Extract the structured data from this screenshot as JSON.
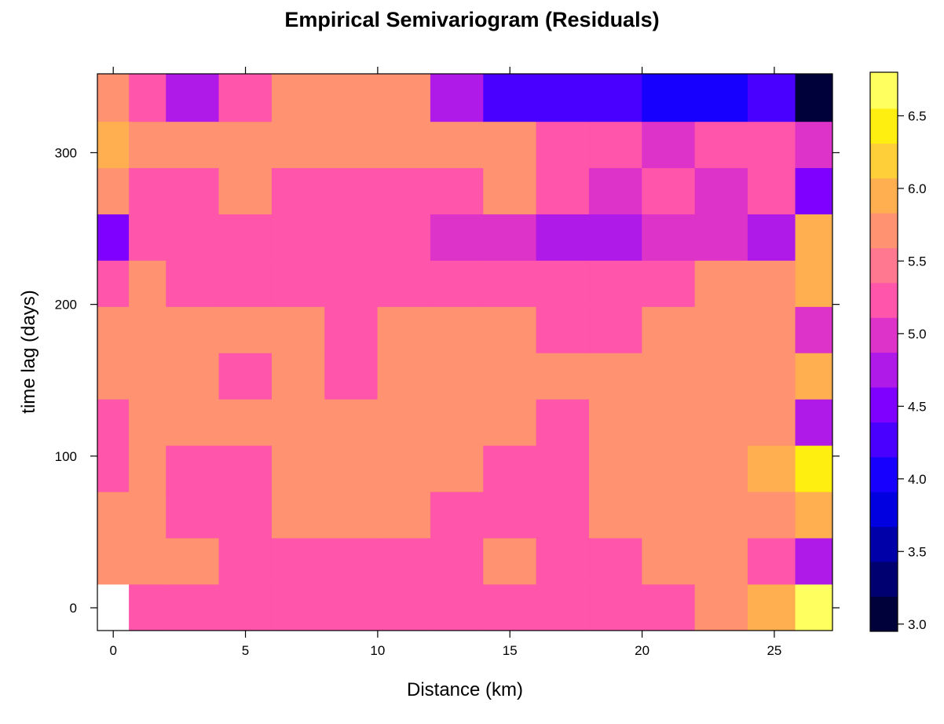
{
  "chart_data": {
    "type": "heatmap",
    "title": "Empirical Semivariogram (Residuals)",
    "xlabel": "Distance (km)",
    "ylabel": "time lag (days)",
    "xlim": [
      -0.6,
      27.2
    ],
    "ylim": [
      -15,
      352
    ],
    "x_ticks": [
      0,
      5,
      10,
      15,
      20,
      25
    ],
    "y_ticks": [
      0,
      100,
      200,
      300
    ],
    "x_edges": [
      -0.6,
      0.6,
      2,
      4,
      6,
      8,
      10,
      12,
      14,
      16,
      18,
      20,
      22,
      24,
      25.8,
      27.2
    ],
    "y_edges": [
      -15,
      15.5,
      46,
      76.5,
      107,
      137.5,
      168,
      198.5,
      229,
      259.5,
      290,
      320.5,
      352
    ],
    "time_lags": [
      0,
      30.5,
      61,
      91.5,
      122,
      152.5,
      183,
      213.5,
      244,
      274.5,
      305,
      335.5
    ],
    "distances": [
      0,
      1.3,
      3,
      5,
      7,
      9,
      11,
      13,
      15,
      17,
      19,
      21,
      23,
      24.9,
      26.5
    ],
    "values": [
      [
        null,
        5.3,
        5.3,
        5.3,
        5.3,
        5.3,
        5.3,
        5.3,
        5.3,
        5.3,
        5.3,
        5.3,
        5.6,
        6.0,
        6.7
      ],
      [
        5.6,
        5.6,
        5.7,
        5.3,
        5.3,
        5.3,
        5.3,
        5.3,
        5.6,
        5.3,
        5.3,
        5.6,
        5.6,
        5.3,
        4.8
      ],
      [
        5.6,
        5.6,
        5.3,
        5.3,
        5.6,
        5.6,
        5.6,
        5.3,
        5.3,
        5.3,
        5.6,
        5.6,
        5.6,
        5.6,
        6.0
      ],
      [
        5.3,
        5.6,
        5.3,
        5.3,
        5.6,
        5.6,
        5.6,
        5.6,
        5.3,
        5.3,
        5.6,
        5.6,
        5.6,
        6.0,
        6.4
      ],
      [
        5.3,
        5.6,
        5.6,
        5.6,
        5.6,
        5.6,
        5.6,
        5.6,
        5.6,
        5.3,
        5.6,
        5.6,
        5.8,
        5.8,
        4.8
      ],
      [
        5.6,
        5.6,
        5.6,
        5.3,
        5.6,
        5.3,
        5.6,
        5.6,
        5.6,
        5.6,
        5.6,
        5.6,
        5.6,
        5.8,
        6.0
      ],
      [
        5.6,
        5.6,
        5.6,
        5.6,
        5.6,
        5.3,
        5.6,
        5.6,
        5.6,
        5.3,
        5.3,
        5.6,
        5.6,
        5.6,
        5.1
      ],
      [
        5.3,
        5.6,
        5.3,
        5.3,
        5.3,
        5.3,
        5.3,
        5.3,
        5.3,
        5.3,
        5.3,
        5.3,
        5.6,
        5.6,
        6.0
      ],
      [
        4.4,
        5.3,
        5.3,
        5.3,
        5.3,
        5.3,
        5.3,
        5.1,
        5.1,
        4.8,
        4.8,
        5.1,
        5.1,
        4.8,
        6.0
      ],
      [
        5.6,
        5.3,
        5.3,
        5.6,
        5.3,
        5.3,
        5.3,
        5.3,
        5.6,
        5.3,
        5.1,
        5.3,
        5.1,
        5.3,
        4.5
      ],
      [
        6.0,
        5.8,
        5.6,
        5.6,
        5.6,
        5.8,
        5.8,
        5.6,
        5.6,
        5.3,
        5.3,
        5.1,
        5.3,
        5.3,
        5.1
      ],
      [
        5.6,
        5.3,
        4.8,
        5.3,
        5.6,
        5.6,
        5.6,
        4.8,
        4.3,
        4.3,
        4.3,
        4.1,
        4.1,
        4.3,
        3.0
      ]
    ],
    "colorbar": {
      "range": [
        2.95,
        6.8
      ],
      "ticks": [
        3.0,
        3.5,
        4.0,
        4.5,
        5.0,
        5.5,
        6.0,
        6.5
      ],
      "tick_labels": [
        "3.0",
        "3.5",
        "4.0",
        "4.5",
        "5.0",
        "5.5",
        "6.0",
        "6.5"
      ],
      "breaks": [
        2.95,
        3.19,
        3.43,
        3.67,
        3.91,
        4.15,
        4.39,
        4.63,
        4.87,
        5.11,
        5.35,
        5.59,
        5.83,
        6.07,
        6.31,
        6.55,
        6.8
      ],
      "colors": [
        "#00003a",
        "#000070",
        "#0000a8",
        "#0000e0",
        "#1800ff",
        "#4a00ff",
        "#8000ff",
        "#b01ae8",
        "#dd33c8",
        "#ff55aa",
        "#ff7890",
        "#ff9270",
        "#ffae50",
        "#ffcf3a",
        "#ffef10",
        "#ffff60"
      ]
    },
    "missing_color": "#ffffff"
  }
}
